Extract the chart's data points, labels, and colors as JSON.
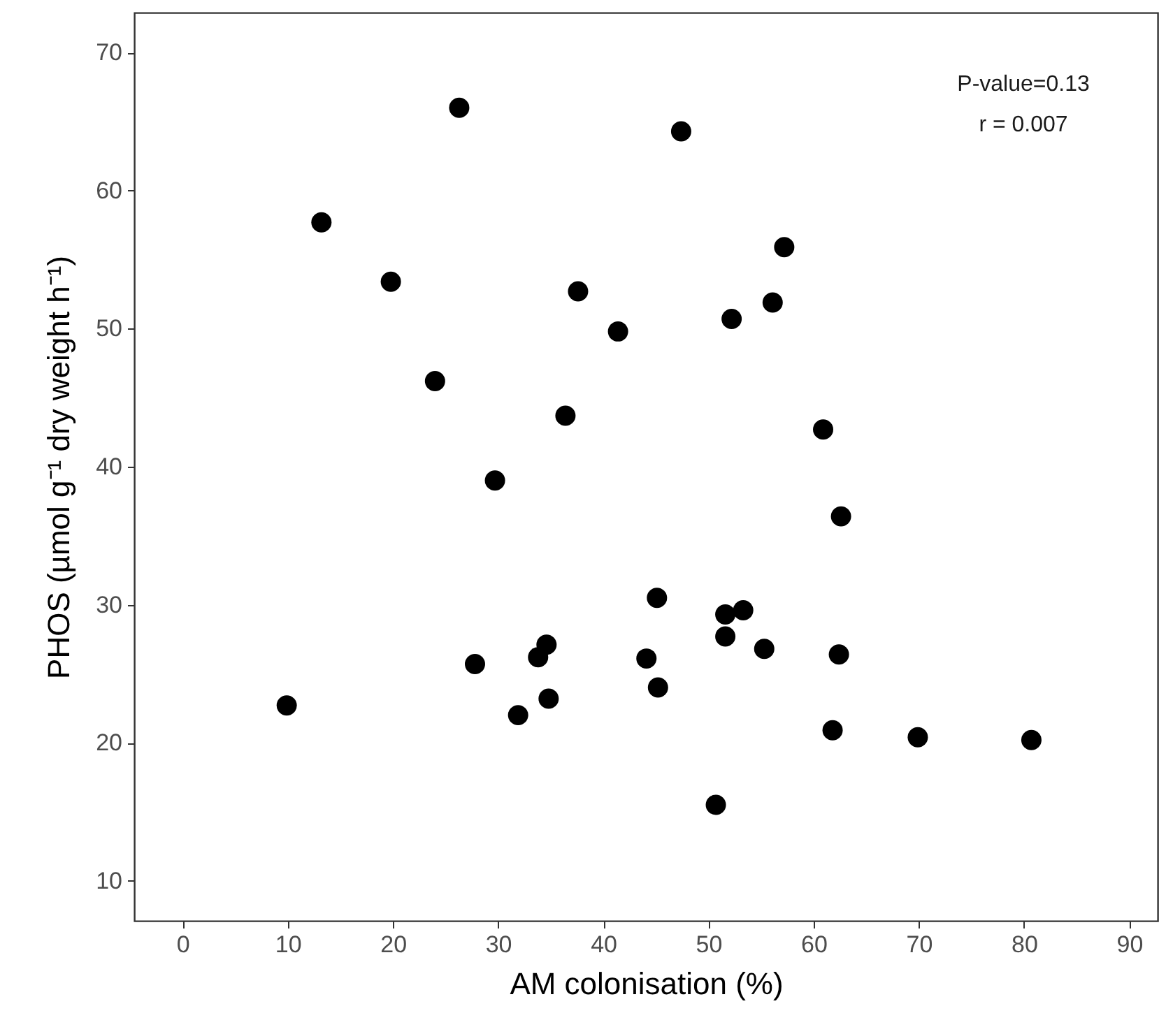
{
  "chart_data": {
    "type": "scatter",
    "xlabel": "AM colonisation (%)",
    "ylabel": "PHOS (µmol g⁻¹ dry weight h⁻¹)",
    "annotations": [
      "P-value=0.13",
      "r = 0.007"
    ],
    "x": [
      9.9,
      13.2,
      19.8,
      24.0,
      26.3,
      29.7,
      36.4,
      37.6,
      27.8,
      33.8,
      34.6,
      47.4,
      57.2,
      56.1,
      52.2,
      41.4,
      60.9,
      62.6,
      45.1,
      51.6,
      53.3,
      51.6,
      55.3,
      62.4,
      44.1,
      31.9,
      34.8,
      45.2,
      50.7,
      61.8,
      69.9,
      80.7
    ],
    "series": [
      {
        "color": "#000000",
        "values": [
          22.7,
          57.7,
          53.4,
          46.2,
          66.0,
          39.0,
          43.7,
          52.7,
          25.7,
          26.2,
          27.1,
          64.3,
          55.9,
          51.9,
          50.7,
          49.8,
          42.7,
          36.4,
          30.5,
          29.3,
          29.6,
          27.7,
          26.8,
          26.4,
          26.1,
          22.0,
          23.2,
          24.0,
          15.5,
          20.9,
          20.4,
          20.2
        ]
      }
    ],
    "xlim": [
      -4.6,
      92.7
    ],
    "ylim": [
      7.1,
      72.9
    ],
    "xticks": [
      0,
      10,
      20,
      30,
      40,
      50,
      60,
      70,
      80,
      90
    ],
    "yticks": [
      10,
      20,
      30,
      40,
      50,
      60,
      70
    ],
    "grid": false,
    "marker": "circle"
  }
}
